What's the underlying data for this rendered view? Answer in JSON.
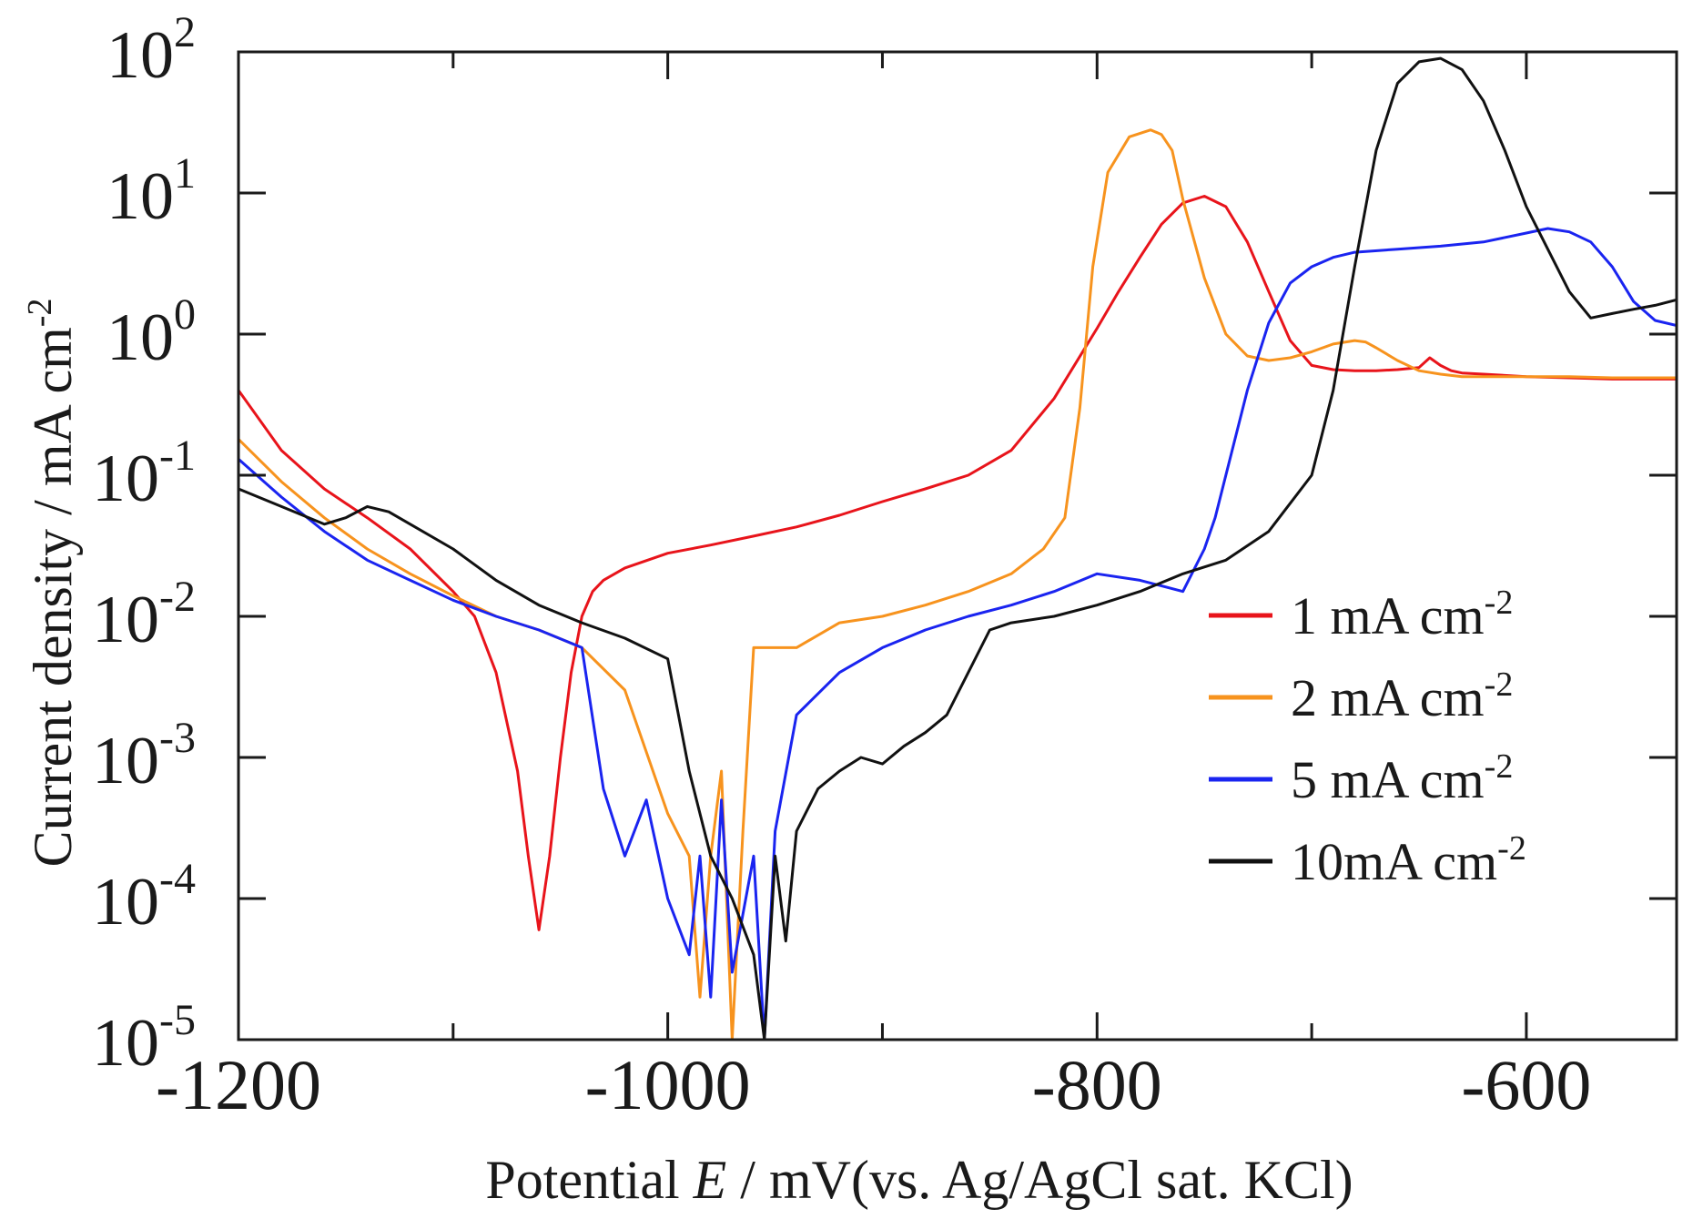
{
  "chart_data": {
    "type": "line",
    "title": "",
    "xlabel": {
      "prefix": "Potential ",
      "symbol": "E",
      "suffix": " / mV(vs. Ag/AgCl sat. KCl)"
    },
    "ylabel": {
      "text": "Current density / mA cm",
      "exponent": "-2"
    },
    "xlim": [
      -1200,
      -530
    ],
    "ylim": [
      1e-05,
      100
    ],
    "yscale": "log",
    "x_ticks": [
      -1200,
      -1000,
      -800,
      -600
    ],
    "y_ticks": [
      {
        "base": "10",
        "exponent": "2",
        "value": 100
      },
      {
        "base": "10",
        "exponent": "1",
        "value": 10
      },
      {
        "base": "10",
        "exponent": "0",
        "value": 1
      },
      {
        "base": "10",
        "exponent": "-1",
        "value": 0.1
      },
      {
        "base": "10",
        "exponent": "-2",
        "value": 0.01
      },
      {
        "base": "10",
        "exponent": "-3",
        "value": 0.001
      },
      {
        "base": "10",
        "exponent": "-4",
        "value": 0.0001
      },
      {
        "base": "10",
        "exponent": "-5",
        "value": 1e-05
      }
    ],
    "legend_position": "right",
    "series": [
      {
        "name": "1 mA cm",
        "name_exponent": "-2",
        "color": "#e8141b",
        "x": [
          -1200,
          -1180,
          -1160,
          -1140,
          -1120,
          -1100,
          -1090,
          -1080,
          -1070,
          -1065,
          -1060,
          -1055,
          -1050,
          -1045,
          -1040,
          -1035,
          -1030,
          -1020,
          -1000,
          -980,
          -960,
          -940,
          -920,
          -900,
          -880,
          -860,
          -840,
          -820,
          -800,
          -790,
          -780,
          -770,
          -760,
          -750,
          -740,
          -730,
          -720,
          -710,
          -700,
          -690,
          -680,
          -670,
          -660,
          -650,
          -645,
          -640,
          -635,
          -630,
          -620,
          -600,
          -580,
          -560,
          -540,
          -530
        ],
        "y": [
          0.4,
          0.15,
          0.08,
          0.05,
          0.03,
          0.015,
          0.01,
          0.004,
          0.0008,
          0.0002,
          6e-05,
          0.0002,
          0.001,
          0.004,
          0.01,
          0.015,
          0.018,
          0.022,
          0.028,
          0.032,
          0.037,
          0.043,
          0.052,
          0.065,
          0.08,
          0.1,
          0.15,
          0.35,
          1.1,
          2.0,
          3.5,
          6.0,
          8.5,
          9.5,
          8.0,
          4.5,
          2.0,
          0.9,
          0.6,
          0.56,
          0.55,
          0.55,
          0.56,
          0.58,
          0.68,
          0.6,
          0.55,
          0.53,
          0.52,
          0.5,
          0.49,
          0.48,
          0.48,
          0.48
        ]
      },
      {
        "name": "2 mA cm",
        "name_exponent": "-2",
        "color": "#f7931e",
        "x": [
          -1200,
          -1180,
          -1160,
          -1140,
          -1120,
          -1100,
          -1080,
          -1060,
          -1040,
          -1020,
          -1000,
          -990,
          -985,
          -980,
          -975,
          -970,
          -965,
          -960,
          -940,
          -920,
          -900,
          -880,
          -860,
          -840,
          -825,
          -815,
          -808,
          -802,
          -795,
          -785,
          -775,
          -770,
          -765,
          -760,
          -750,
          -740,
          -730,
          -720,
          -710,
          -700,
          -690,
          -680,
          -675,
          -670,
          -660,
          -650,
          -640,
          -630,
          -620,
          -600,
          -580,
          -560,
          -540,
          -530
        ],
        "y": [
          0.18,
          0.09,
          0.05,
          0.03,
          0.02,
          0.014,
          0.01,
          0.008,
          0.006,
          0.003,
          0.0004,
          0.0002,
          2e-05,
          0.0002,
          0.0008,
          1e-05,
          0.0003,
          0.006,
          0.006,
          0.009,
          0.01,
          0.012,
          0.015,
          0.02,
          0.03,
          0.05,
          0.3,
          3.0,
          14.0,
          25.0,
          28.0,
          26.0,
          20.0,
          9.0,
          2.5,
          1.0,
          0.7,
          0.65,
          0.68,
          0.75,
          0.85,
          0.9,
          0.88,
          0.8,
          0.65,
          0.55,
          0.52,
          0.5,
          0.5,
          0.5,
          0.5,
          0.49,
          0.49,
          0.49
        ]
      },
      {
        "name": "5 mA cm",
        "name_exponent": "-2",
        "color": "#1a24f0",
        "x": [
          -1200,
          -1180,
          -1160,
          -1140,
          -1120,
          -1100,
          -1080,
          -1060,
          -1040,
          -1030,
          -1020,
          -1010,
          -1000,
          -990,
          -985,
          -980,
          -975,
          -970,
          -960,
          -955,
          -950,
          -940,
          -920,
          -900,
          -880,
          -860,
          -840,
          -820,
          -800,
          -780,
          -760,
          -750,
          -745,
          -740,
          -730,
          -720,
          -710,
          -700,
          -690,
          -680,
          -660,
          -640,
          -620,
          -600,
          -590,
          -580,
          -570,
          -560,
          -550,
          -540,
          -530
        ],
        "y": [
          0.13,
          0.07,
          0.04,
          0.025,
          0.018,
          0.013,
          0.01,
          0.008,
          0.006,
          0.0006,
          0.0002,
          0.0005,
          0.0001,
          4e-05,
          0.0002,
          2e-05,
          0.0005,
          3e-05,
          0.0002,
          1e-05,
          0.0003,
          0.002,
          0.004,
          0.006,
          0.008,
          0.01,
          0.012,
          0.015,
          0.02,
          0.018,
          0.015,
          0.03,
          0.05,
          0.1,
          0.4,
          1.2,
          2.3,
          3.0,
          3.5,
          3.8,
          4.0,
          4.2,
          4.5,
          5.2,
          5.6,
          5.3,
          4.5,
          3.0,
          1.7,
          1.25,
          1.15
        ]
      },
      {
        "name": "10mA cm",
        "name_exponent": "-2",
        "color": "#111111",
        "x": [
          -1200,
          -1180,
          -1160,
          -1150,
          -1140,
          -1130,
          -1120,
          -1100,
          -1080,
          -1060,
          -1040,
          -1020,
          -1000,
          -990,
          -980,
          -970,
          -960,
          -955,
          -950,
          -945,
          -940,
          -930,
          -920,
          -910,
          -900,
          -890,
          -880,
          -870,
          -860,
          -850,
          -840,
          -820,
          -800,
          -780,
          -760,
          -740,
          -720,
          -700,
          -690,
          -680,
          -670,
          -660,
          -650,
          -640,
          -630,
          -620,
          -610,
          -600,
          -590,
          -580,
          -570,
          -560,
          -550,
          -540,
          -530
        ],
        "y": [
          0.08,
          0.06,
          0.045,
          0.05,
          0.06,
          0.055,
          0.045,
          0.03,
          0.018,
          0.012,
          0.009,
          0.007,
          0.005,
          0.0008,
          0.0002,
          0.0001,
          4e-05,
          1e-05,
          0.0002,
          5e-05,
          0.0003,
          0.0006,
          0.0008,
          0.001,
          0.0009,
          0.0012,
          0.0015,
          0.002,
          0.004,
          0.008,
          0.009,
          0.01,
          0.012,
          0.015,
          0.02,
          0.025,
          0.04,
          0.1,
          0.4,
          3.0,
          20.0,
          60.0,
          85.0,
          90.0,
          75.0,
          45.0,
          20.0,
          8.0,
          4.0,
          2.0,
          1.3,
          1.4,
          1.5,
          1.6,
          1.75
        ]
      }
    ]
  }
}
